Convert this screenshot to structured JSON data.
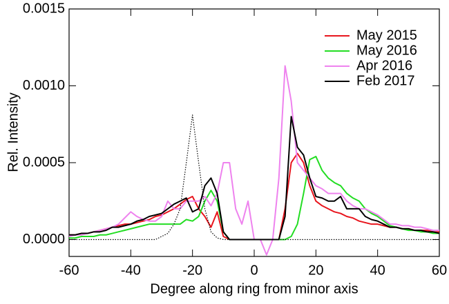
{
  "chart_data": {
    "type": "line",
    "xlabel": "Degree along ring from minor axis",
    "ylabel": "Rel. Intensity",
    "xlim": [
      -60,
      60
    ],
    "xticks": [
      -60,
      -40,
      -20,
      0,
      20,
      40,
      60
    ],
    "ylim": [
      -0.00011,
      0.0015
    ],
    "yticks": [
      {
        "value": 0,
        "label": "0.0000"
      },
      {
        "value": 0.0005,
        "label": "0.0005"
      },
      {
        "value": 0.001,
        "label": "0.0010"
      },
      {
        "value": 0.0015,
        "label": "0.0015"
      }
    ],
    "legend": "upper right",
    "x": [
      -60,
      -58,
      -56,
      -54,
      -52,
      -50,
      -48,
      -46,
      -44,
      -42,
      -40,
      -38,
      -36,
      -34,
      -32,
      -30,
      -28,
      -26,
      -24,
      -22,
      -20,
      -18,
      -16,
      -14,
      -12,
      -10,
      -8,
      -6,
      -4,
      -2,
      0,
      2,
      4,
      6,
      8,
      10,
      12,
      14,
      16,
      18,
      20,
      22,
      24,
      26,
      28,
      30,
      32,
      34,
      36,
      38,
      40,
      42,
      44,
      46,
      48,
      50,
      52,
      54,
      56,
      58,
      60
    ],
    "series": [
      {
        "name": "May 2015",
        "color": "#e8141c",
        "values": [
          3e-05,
          3e-05,
          4e-05,
          4e-05,
          5e-05,
          6e-05,
          7e-05,
          8e-05,
          9e-05,
          0.0001,
          0.0001,
          0.00011,
          0.00012,
          0.00013,
          0.00015,
          0.00016,
          0.00018,
          0.0002,
          0.00023,
          0.00026,
          0.00028,
          0.0002,
          0.00015,
          8e-05,
          0.00018,
          2e-05,
          0,
          0,
          0,
          0,
          0,
          0,
          0,
          0,
          0,
          0.0002,
          0.0005,
          0.00056,
          0.0005,
          0.00035,
          0.00025,
          0.00022,
          0.0002,
          0.00018,
          0.00017,
          0.00015,
          0.00014,
          0.00012,
          0.00011,
          0.0001,
          0.0001,
          9e-05,
          8e-05,
          8e-05,
          7e-05,
          7e-05,
          6e-05,
          6e-05,
          6e-05,
          5e-05,
          5e-05
        ]
      },
      {
        "name": "May 2016",
        "color": "#22dd22",
        "values": [
          1e-05,
          1e-05,
          2e-05,
          2e-05,
          2e-05,
          3e-05,
          3e-05,
          4e-05,
          5e-05,
          6e-05,
          7e-05,
          8e-05,
          9e-05,
          0.0001,
          0.0001,
          0.0001,
          0.0001,
          0.0001,
          0.0001,
          0.00013,
          0.00012,
          0.00015,
          0.00025,
          0.00032,
          0.00025,
          5e-05,
          0,
          0,
          0,
          0,
          0,
          0,
          0,
          0,
          0,
          0,
          2e-05,
          0.0001,
          0.0003,
          0.00052,
          0.00054,
          0.00045,
          0.0004,
          0.00037,
          0.00035,
          0.0003,
          0.00027,
          0.00025,
          0.0002,
          0.00017,
          0.00015,
          0.00012,
          9e-05,
          8e-05,
          7e-05,
          6e-05,
          6e-05,
          5e-05,
          5e-05,
          4e-05,
          4e-05
        ]
      },
      {
        "name": "Apr 2016",
        "color": "#ee82ee",
        "values": [
          2e-05,
          3e-05,
          3e-05,
          4e-05,
          5e-05,
          6e-05,
          7e-05,
          8e-05,
          0.0001,
          0.00014,
          0.00018,
          0.00015,
          0.00013,
          0.00012,
          0.00012,
          0.00015,
          0.00025,
          0.0002,
          0.0002,
          0.00025,
          0.00025,
          0.00025,
          0.00028,
          0.00022,
          0.0003,
          0.0005,
          0.0005,
          0.0002,
          0.0001,
          0.00025,
          0,
          0,
          -0.0001,
          0,
          0.0004,
          0.00113,
          0.0009,
          0.0005,
          0.00045,
          0.0004,
          0.00035,
          0.00033,
          0.0003,
          0.0003,
          0.0003,
          0.00025,
          0.00022,
          0.0002,
          0.0002,
          0.00018,
          0.00016,
          0.00013,
          0.0001,
          0.0001,
          9e-05,
          9e-05,
          8e-05,
          8e-05,
          7e-05,
          6e-05,
          6e-05
        ]
      },
      {
        "name": "Feb 2017",
        "color": "#000000",
        "values": [
          3e-05,
          3e-05,
          4e-05,
          4e-05,
          5e-05,
          5e-05,
          6e-05,
          8e-05,
          8e-05,
          9e-05,
          0.0001,
          0.00012,
          0.00013,
          0.00015,
          0.00016,
          0.00017,
          0.0002,
          0.00023,
          0.00025,
          0.00027,
          0.00018,
          0.0002,
          0.00035,
          0.0004,
          0.0003,
          5e-05,
          0,
          0,
          0,
          0,
          0,
          0,
          0,
          0,
          0,
          0.00015,
          0.0008,
          0.0006,
          0.00055,
          0.0004,
          0.00028,
          0.00027,
          0.00025,
          0.00025,
          0.00028,
          0.0002,
          0.0002,
          0.0002,
          0.00015,
          0.00013,
          0.00012,
          0.0001,
          8e-05,
          8e-05,
          7e-05,
          7e-05,
          6e-05,
          6e-05,
          5e-05,
          5e-05,
          4e-05
        ]
      },
      {
        "color": "#000000",
        "style": "dotted",
        "values": [
          0,
          0,
          0,
          0,
          0,
          0,
          0,
          0,
          0,
          0,
          0,
          0,
          0,
          0,
          0,
          2e-05,
          4e-05,
          0.0001,
          0.0002,
          0.0005,
          0.00081,
          0.0005,
          0.0002,
          5e-05,
          1e-05,
          0,
          0,
          0,
          0,
          0,
          0,
          0,
          0,
          0,
          0,
          0,
          0,
          0,
          0,
          0,
          0,
          0,
          0,
          0,
          0,
          0,
          0,
          0,
          0,
          0,
          0,
          0,
          0,
          0,
          0,
          0,
          0,
          0,
          0,
          0,
          0
        ]
      }
    ]
  }
}
